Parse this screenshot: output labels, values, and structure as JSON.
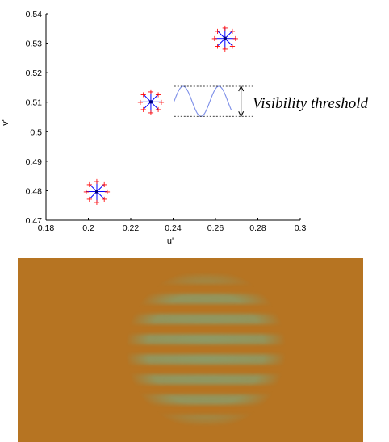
{
  "chart_data": {
    "type": "scatter",
    "xlabel": "u'",
    "ylabel": "v'",
    "xlim": [
      0.18,
      0.3
    ],
    "ylim": [
      0.47,
      0.54
    ],
    "x_ticks": [
      "0.18",
      "0.2",
      "0.22",
      "0.24",
      "0.26",
      "0.28",
      "0.3"
    ],
    "y_ticks": [
      "0.47",
      "0.48",
      "0.49",
      "0.5",
      "0.51",
      "0.52",
      "0.53",
      "0.54"
    ],
    "x_tick_values": [
      0.18,
      0.2,
      0.22,
      0.24,
      0.26,
      0.28,
      0.3
    ],
    "y_tick_values": [
      0.47,
      0.48,
      0.49,
      0.5,
      0.51,
      0.52,
      0.53,
      0.54
    ],
    "points": [
      {
        "x": 0.204,
        "y": 0.4797
      },
      {
        "x": 0.2295,
        "y": 0.5101
      },
      {
        "x": 0.2645,
        "y": 0.5316
      }
    ],
    "wave": {
      "x_start": 0.2405,
      "x_end": 0.2675,
      "y_center": 0.5103,
      "amplitude": 0.0051,
      "cycles": 1.6
    },
    "threshold_annotation": "Visibility threshold",
    "grid": false,
    "colors": {
      "center": "#000080",
      "spoke": "#0000ff",
      "marker": "#ff0000",
      "wave": "#7c8ee8",
      "axis": "#000000"
    }
  },
  "stimulus": {
    "background_color": "#b67422",
    "stripe_color": "#8d9a66",
    "stripe_count": 8
  }
}
